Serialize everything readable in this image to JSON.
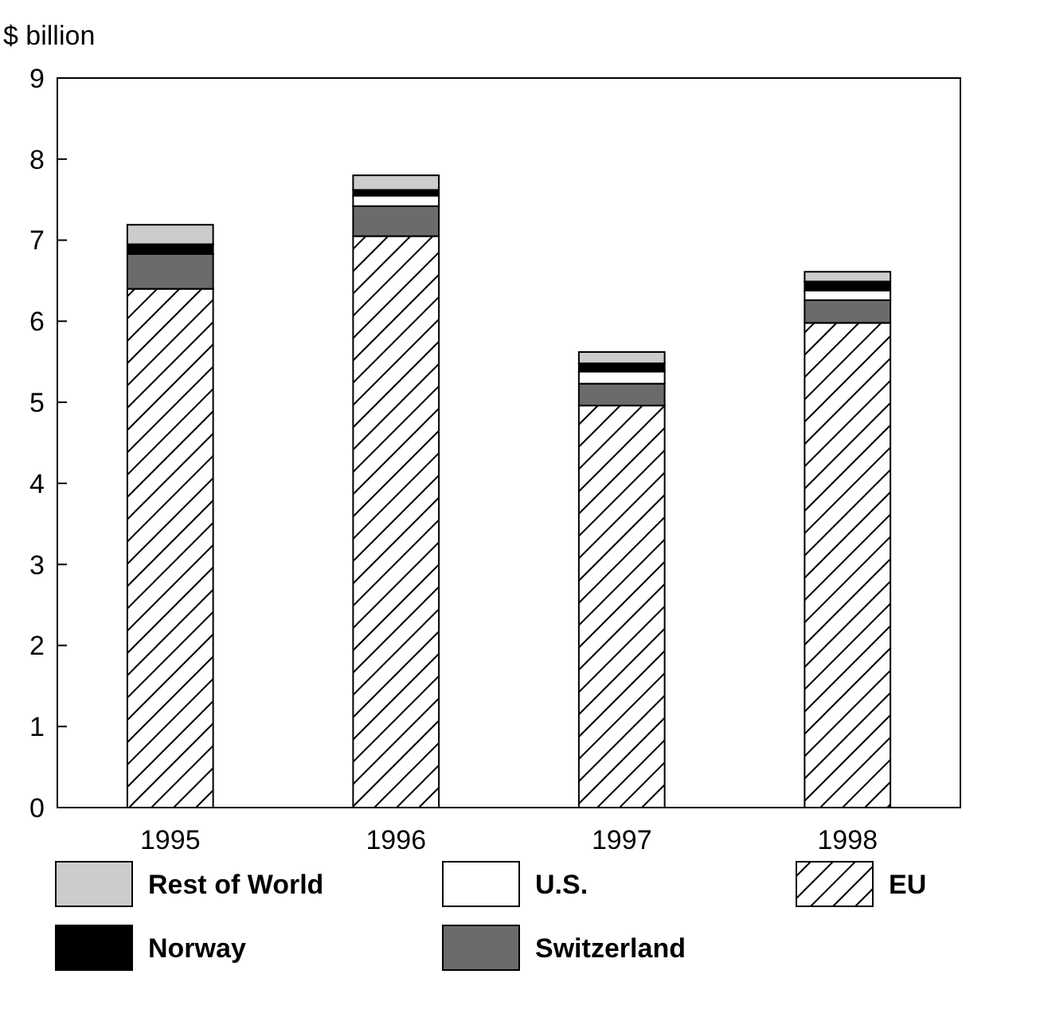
{
  "chart_data": {
    "type": "bar",
    "ylabel": "$ billion",
    "categories": [
      "1995",
      "1996",
      "1997",
      "1998"
    ],
    "stacked": true,
    "ylim": [
      0,
      9
    ],
    "yticks": [
      0,
      1,
      2,
      3,
      4,
      5,
      6,
      7,
      8,
      9
    ],
    "grid": false,
    "legend": "bottom",
    "series": [
      {
        "name": "EU",
        "color": "#ffffff",
        "values": [
          6.4,
          7.05,
          4.96,
          5.98
        ]
      },
      {
        "name": "Switzerland",
        "color": "#6b6b6b",
        "values": [
          0.43,
          0.37,
          0.27,
          0.28
        ]
      },
      {
        "name": "U.S.",
        "color": "#ffffff",
        "values": [
          0,
          0.13,
          0.15,
          0.12
        ]
      },
      {
        "name": "Norway",
        "color": "#000000",
        "values": [
          0.12,
          0.07,
          0.1,
          0.11
        ]
      },
      {
        "name": "Rest of World",
        "color": "#cccccc",
        "values": [
          0.24,
          0.18,
          0.14,
          0.12
        ]
      }
    ]
  }
}
